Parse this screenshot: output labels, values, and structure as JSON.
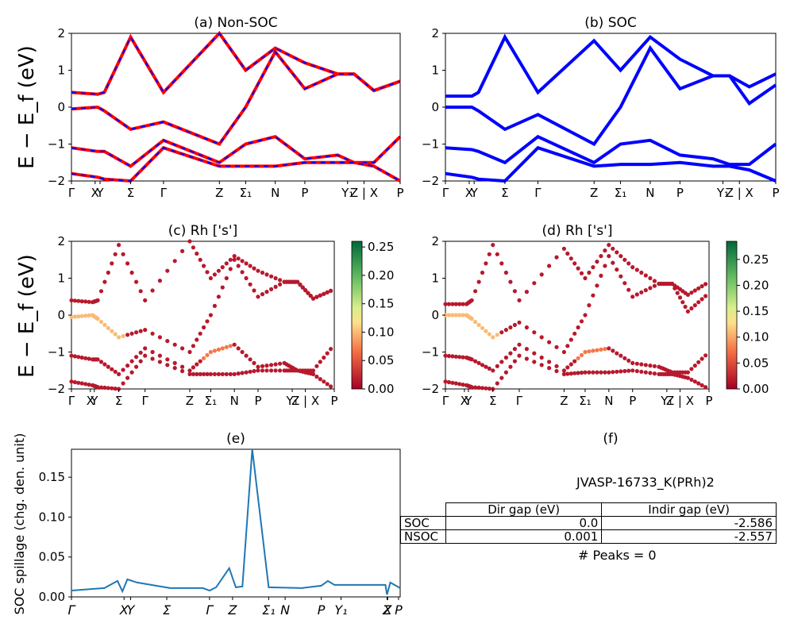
{
  "panels": {
    "a": {
      "title": "(a) Non-SOC"
    },
    "b": {
      "title": "(b) SOC"
    },
    "c": {
      "title": "(c)  Rh ['s']"
    },
    "d": {
      "title": "(d) Rh ['s']"
    },
    "e": {
      "title": "(e)"
    },
    "f": {
      "title": "(f)"
    }
  },
  "ylabel_band": "E − E_f (eV)",
  "ylabel_spillage": "SOC spillage (chg. den. unit)",
  "band_kpath_labels": [
    "Γ",
    "X",
    "Y",
    "Σ",
    "Γ",
    "Z",
    "Σ₁",
    "N",
    "P",
    "Y₁",
    "Z | X",
    "P"
  ],
  "spill_kpath_labels": [
    "Γ",
    "X",
    "Y",
    "Σ",
    "Γ",
    "Z",
    "Σ₁",
    "N",
    "P",
    "Y₁",
    "Z",
    "X",
    "P"
  ],
  "band_yticks": [
    "−2",
    "−1",
    "0",
    "1",
    "2"
  ],
  "colorbar_c_ticks": [
    "0.00",
    "0.05",
    "0.10",
    "0.15",
    "0.20",
    "0.25"
  ],
  "colorbar_d_ticks": [
    "0.00",
    "0.05",
    "0.10",
    "0.15",
    "0.20",
    "0.25"
  ],
  "spill_yticks": [
    "0.00",
    "0.05",
    "0.10",
    "0.15"
  ],
  "colors": {
    "nonsoc_line": "#ff0000",
    "nonsoc_dash": "#0000ff",
    "soc_line": "#0000ff",
    "spill_line": "#1f77b4"
  },
  "material": "JVASP-16733_K(PRh)2",
  "gap_table": {
    "headers": [
      "Dir gap (eV)",
      "Indir gap (eV)"
    ],
    "rows": [
      {
        "label": "SOC",
        "dir": "0.0",
        "indir": "-2.586"
      },
      {
        "label": "NSOC",
        "dir": "0.001",
        "indir": "-2.557"
      }
    ]
  },
  "peaks_text": "# Peaks = 0",
  "chart_data": [
    {
      "type": "line",
      "title": "(a) Non-SOC",
      "ylabel": "E − E_f (eV)",
      "ylim": [
        -2,
        2
      ],
      "x": [
        0,
        0.08,
        0.1,
        0.18,
        0.28,
        0.45,
        0.53,
        0.62,
        0.71,
        0.81,
        0.86,
        0.92,
        1.0
      ],
      "series": [
        {
          "name": "band1",
          "values": [
            0.4,
            0.35,
            0.4,
            1.9,
            0.4,
            2.0,
            1.0,
            1.6,
            1.2,
            0.9,
            0.9,
            0.45,
            0.7
          ]
        },
        {
          "name": "band2",
          "values": [
            -0.05,
            0.0,
            -0.1,
            -0.6,
            -0.4,
            -1.0,
            0.0,
            1.5,
            0.5,
            0.9,
            0.9,
            0.45,
            0.7
          ]
        },
        {
          "name": "band3",
          "values": [
            -1.1,
            -1.2,
            -1.2,
            -1.6,
            -0.9,
            -1.5,
            -1.0,
            -0.8,
            -1.4,
            -1.3,
            -1.5,
            -1.5,
            -0.8
          ]
        },
        {
          "name": "band4",
          "values": [
            -1.8,
            -1.9,
            -1.95,
            -2.0,
            -1.1,
            -1.6,
            -1.6,
            -1.6,
            -1.5,
            -1.5,
            -1.5,
            -1.6,
            -2.0
          ]
        }
      ]
    },
    {
      "type": "line",
      "title": "(b) SOC",
      "ylabel": "",
      "ylim": [
        -2,
        2
      ],
      "x": [
        0,
        0.08,
        0.1,
        0.18,
        0.28,
        0.45,
        0.53,
        0.62,
        0.71,
        0.81,
        0.86,
        0.92,
        1.0
      ],
      "series": [
        {
          "name": "band1",
          "values": [
            0.3,
            0.3,
            0.4,
            1.9,
            0.4,
            1.8,
            1.0,
            1.9,
            1.3,
            0.85,
            0.85,
            0.55,
            0.9
          ]
        },
        {
          "name": "band2",
          "values": [
            0.0,
            0.0,
            -0.1,
            -0.6,
            -0.2,
            -1.0,
            0.0,
            1.6,
            0.5,
            0.85,
            0.85,
            0.1,
            0.6
          ]
        },
        {
          "name": "band3",
          "values": [
            -1.1,
            -1.15,
            -1.2,
            -1.5,
            -0.8,
            -1.5,
            -1.0,
            -0.9,
            -1.3,
            -1.4,
            -1.55,
            -1.55,
            -1.0
          ]
        },
        {
          "name": "band4",
          "values": [
            -1.8,
            -1.9,
            -1.95,
            -2.0,
            -1.1,
            -1.6,
            -1.55,
            -1.55,
            -1.5,
            -1.6,
            -1.6,
            -1.7,
            -2.0
          ]
        }
      ]
    },
    {
      "type": "line",
      "title": "(e)",
      "ylabel": "SOC spillage (chg. den. unit)",
      "ylim": [
        0,
        0.185
      ],
      "x": [
        0,
        0.1,
        0.14,
        0.155,
        0.17,
        0.2,
        0.3,
        0.4,
        0.42,
        0.44,
        0.48,
        0.5,
        0.52,
        0.55,
        0.6,
        0.7,
        0.76,
        0.78,
        0.8,
        0.9,
        0.955,
        0.96,
        0.97,
        1.0
      ],
      "series": [
        {
          "name": "spillage",
          "values": [
            0.008,
            0.011,
            0.02,
            0.007,
            0.022,
            0.018,
            0.011,
            0.011,
            0.008,
            0.012,
            0.036,
            0.012,
            0.013,
            0.185,
            0.012,
            0.011,
            0.014,
            0.02,
            0.015,
            0.015,
            0.015,
            0.003,
            0.018,
            0.011
          ]
        }
      ]
    }
  ]
}
